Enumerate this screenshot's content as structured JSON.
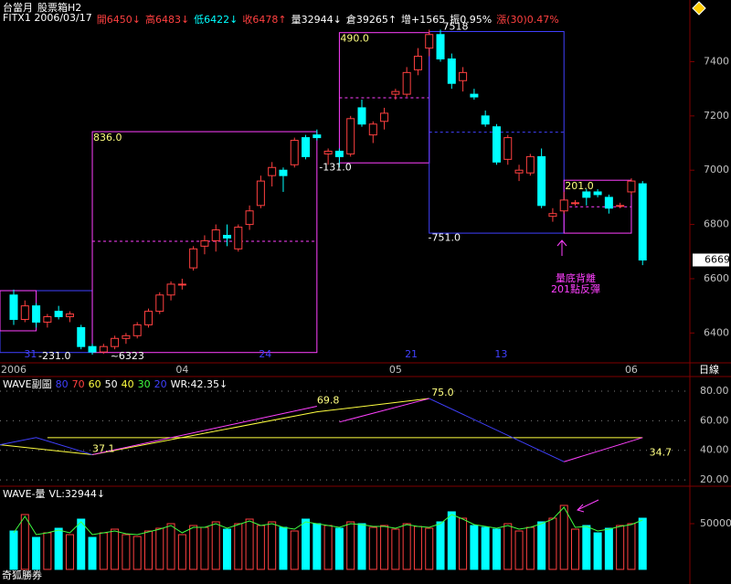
{
  "chart_data": [
    {
      "type": "candlestick",
      "title": "台當月",
      "subtitle": "股票箱H2",
      "info": [
        {
          "text": "FITX1 2006/03/17",
          "color": "#ffffff"
        },
        {
          "text": "開6450↓",
          "color": "#ff4040"
        },
        {
          "text": "高6483↓",
          "color": "#ff4040"
        },
        {
          "text": "低6422↓",
          "color": "#00ffff"
        },
        {
          "text": "收6478↑",
          "color": "#ff4040"
        },
        {
          "text": "量32944↓",
          "color": "#ffffff"
        },
        {
          "text": "倉39265↑",
          "color": "#ffffff"
        },
        {
          "text": "增+1565",
          "color": "#ffffff"
        },
        {
          "text": "振0.95%",
          "color": "#ffffff"
        },
        {
          "text": "漲(30)0.47%",
          "color": "#ff4040"
        }
      ],
      "up_color": "#ff4040",
      "down_color": "#00ffff",
      "candles": [
        [
          6540,
          6560,
          6430,
          6450
        ],
        [
          6450,
          6520,
          6440,
          6500
        ],
        [
          6500,
          6510,
          6420,
          6440
        ],
        [
          6440,
          6470,
          6420,
          6460
        ],
        [
          6480,
          6500,
          6450,
          6460
        ],
        [
          6460,
          6480,
          6440,
          6470
        ],
        [
          6420,
          6430,
          6340,
          6350
        ],
        [
          6350,
          6360,
          6320,
          6330
        ],
        [
          6330,
          6360,
          6323,
          6350
        ],
        [
          6350,
          6390,
          6340,
          6380
        ],
        [
          6380,
          6400,
          6360,
          6390
        ],
        [
          6390,
          6440,
          6380,
          6430
        ],
        [
          6430,
          6490,
          6420,
          6480
        ],
        [
          6480,
          6550,
          6470,
          6540
        ],
        [
          6540,
          6590,
          6520,
          6580
        ],
        [
          6580,
          6600,
          6560,
          6580
        ],
        [
          6640,
          6720,
          6630,
          6710
        ],
        [
          6720,
          6760,
          6690,
          6740
        ],
        [
          6740,
          6800,
          6700,
          6780
        ],
        [
          6760,
          6800,
          6720,
          6750
        ],
        [
          6710,
          6800,
          6700,
          6790
        ],
        [
          6800,
          6870,
          6780,
          6850
        ],
        [
          6870,
          6980,
          6860,
          6960
        ],
        [
          6980,
          7030,
          6940,
          7010
        ],
        [
          7000,
          7010,
          6920,
          6980
        ],
        [
          7020,
          7120,
          7010,
          7110
        ],
        [
          7120,
          7130,
          7040,
          7050
        ],
        [
          7130,
          7150,
          7110,
          7120
        ],
        [
          7060,
          7080,
          7020,
          7070
        ],
        [
          7070,
          7080,
          7010,
          7050
        ],
        [
          7060,
          7200,
          7050,
          7190
        ],
        [
          7230,
          7260,
          7160,
          7170
        ],
        [
          7130,
          7180,
          7100,
          7170
        ],
        [
          7180,
          7230,
          7150,
          7210
        ],
        [
          7280,
          7300,
          7260,
          7290
        ],
        [
          7280,
          7380,
          7270,
          7360
        ],
        [
          7370,
          7450,
          7350,
          7420
        ],
        [
          7450,
          7518,
          7420,
          7500
        ],
        [
          7500,
          7518,
          7400,
          7410
        ],
        [
          7410,
          7430,
          7300,
          7320
        ],
        [
          7330,
          7380,
          7290,
          7360
        ],
        [
          7280,
          7300,
          7260,
          7270
        ],
        [
          7200,
          7220,
          7160,
          7170
        ],
        [
          7160,
          7170,
          7020,
          7030
        ],
        [
          7040,
          7130,
          7020,
          7120
        ],
        [
          6990,
          7020,
          6960,
          7000
        ],
        [
          6990,
          7060,
          6980,
          7050
        ],
        [
          7050,
          7080,
          6860,
          6870
        ],
        [
          6830,
          6860,
          6810,
          6840
        ],
        [
          6850,
          6920,
          6840,
          6890
        ],
        [
          6880,
          6890,
          6870,
          6880
        ],
        [
          6920,
          6930,
          6870,
          6900
        ],
        [
          6920,
          6930,
          6900,
          6910
        ],
        [
          6900,
          6910,
          6840,
          6860
        ],
        [
          6870,
          6880,
          6860,
          6870
        ],
        [
          6920,
          6970,
          6910,
          6960
        ],
        [
          6950,
          6960,
          6650,
          6669
        ]
      ],
      "ylim": [
        6290,
        7570
      ],
      "yticks": [
        6400,
        6600,
        6800,
        7000,
        7200,
        7400
      ],
      "xticks": [
        {
          "value": 0,
          "label": "2006"
        },
        {
          "value": 15,
          "label": "04"
        },
        {
          "value": 34,
          "label": "05"
        },
        {
          "value": 55,
          "label": "06"
        }
      ],
      "period_label": "日線",
      "day_ticks": [
        {
          "value": 1.5,
          "label": "31"
        },
        {
          "value": 22.4,
          "label": "24"
        },
        {
          "value": 35.4,
          "label": "21"
        },
        {
          "value": 43.4,
          "label": "13"
        }
      ],
      "last_price": 6669,
      "boxes": [
        {
          "x0": -1.22,
          "x1": 7,
          "top": 6556,
          "bottom": 6328,
          "color": "#4040ff"
        },
        {
          "x0": -1.22,
          "x1": 2,
          "top": 6556,
          "bottom": 6408,
          "color": "#ff40ff"
        },
        {
          "x0": 7,
          "x1": 27,
          "top": 7142,
          "bottom": 6328,
          "color": "#ff40ff",
          "label": "836.0",
          "mid": 6738
        },
        {
          "x0": 29,
          "x1": 37,
          "top": 7507,
          "bottom": 7027,
          "color": "#ff40ff",
          "label": "490.0",
          "mid": 7267
        },
        {
          "x0": 37,
          "x1": 49,
          "top": 7511,
          "bottom": 6768,
          "color": "#4040ff",
          "mid": 7140
        },
        {
          "x0": 49,
          "x1": 55,
          "top": 6963,
          "bottom": 6768,
          "color": "#ff40ff",
          "label": "201.0",
          "mid": 6865
        }
      ],
      "annotations": [
        {
          "text": "-231.0",
          "x": 2.2,
          "y": 6314
        },
        {
          "text": "~6323",
          "x": 8.6,
          "y": 6314
        },
        {
          "text": "-131.0",
          "x": 27.2,
          "y": 7010
        },
        {
          "text": "-751.0",
          "x": 36.9,
          "y": 6750
        },
        {
          "text": "7518",
          "x": 38.2,
          "y": 7528
        }
      ],
      "note": [
        "量底背離",
        "201點反彈"
      ]
    },
    {
      "type": "line",
      "title": "WAVE副圖",
      "levels": [
        {
          "text": "80",
          "color": "#4040ff"
        },
        {
          "text": "70",
          "color": "#ff4040"
        },
        {
          "text": "60",
          "color": "#ffff40"
        },
        {
          "text": "50",
          "color": "#ffffff"
        },
        {
          "text": "40",
          "color": "#ffff40"
        },
        {
          "text": "30",
          "color": "#40ff40"
        },
        {
          "text": "20",
          "color": "#4040ff"
        }
      ],
      "readout": "WR:42.35↓",
      "ylim": [
        17,
        88
      ],
      "yticks": [
        {
          "value": 80,
          "label": "80.00"
        },
        {
          "value": 60,
          "label": "60.00"
        },
        {
          "value": 40,
          "label": "40.00"
        },
        {
          "value": 20,
          "label": "20.00"
        }
      ],
      "grid": true,
      "series": [
        {
          "color": "#ffff40",
          "x": [
            -1.22,
            7,
            27,
            37
          ],
          "values": [
            43.8,
            37.1,
            66,
            75
          ]
        },
        {
          "color": "#ffff40",
          "x": [
            3,
            56
          ],
          "values": [
            48.6,
            48.6
          ]
        },
        {
          "color": "#4040ff",
          "x": [
            -1.22,
            2,
            7
          ],
          "values": [
            43.8,
            48.6,
            37.1
          ]
        },
        {
          "color": "#ff40ff",
          "x": [
            7,
            27
          ],
          "values": [
            37.1,
            69.8
          ]
        },
        {
          "color": "#ff40ff",
          "x": [
            29,
            37
          ],
          "values": [
            59.1,
            75
          ]
        },
        {
          "color": "#4040ff",
          "x": [
            37,
            49
          ],
          "values": [
            75,
            32.3
          ]
        },
        {
          "color": "#ff40ff",
          "x": [
            49,
            56
          ],
          "values": [
            32.3,
            48.6
          ]
        }
      ],
      "point_labels": [
        {
          "x": 27,
          "value": 69.8
        },
        {
          "x": 37.2,
          "value": 75,
          "label": "75.0"
        },
        {
          "x": 7,
          "value": 37.1
        },
        {
          "x": 56.6,
          "value": 34.7
        }
      ]
    },
    {
      "type": "bar",
      "title": "WAVE-量",
      "readout": "VL:32944↓",
      "values": [
        42000,
        60000,
        35000,
        40000,
        45000,
        38000,
        55000,
        35000,
        40000,
        44000,
        38000,
        36000,
        42000,
        45000,
        50000,
        38000,
        48000,
        46000,
        52000,
        44000,
        50000,
        55000,
        48000,
        52000,
        46000,
        42000,
        55000,
        50000,
        48000,
        45000,
        52000,
        50000,
        46000,
        48000,
        44000,
        50000,
        47000,
        45000,
        52000,
        63000,
        56000,
        48000,
        46000,
        44000,
        50000,
        42000,
        46000,
        52000,
        56000,
        70000,
        44000,
        48000,
        40000,
        45000,
        48000,
        50000,
        56000
      ],
      "line_color": "#40ff40",
      "line_values": [
        40000,
        58000,
        38000,
        40000,
        43000,
        40000,
        52000,
        38000,
        40000,
        42000,
        39000,
        38000,
        41000,
        44000,
        48000,
        40000,
        46000,
        46000,
        50000,
        45000,
        49000,
        53000,
        48000,
        50000,
        46000,
        44000,
        52000,
        50000,
        48000,
        46000,
        50000,
        49000,
        47000,
        47000,
        45000,
        49000,
        47000,
        46000,
        50000,
        60000,
        55000,
        49000,
        47000,
        45000,
        48000,
        44000,
        46000,
        50000,
        55000,
        68000,
        46000,
        47000,
        42000,
        44000,
        47000,
        49000,
        54000
      ],
      "ylim": [
        0,
        86000
      ],
      "yticks": [
        {
          "value": 50000,
          "label": "50000"
        }
      ],
      "footer": "奇狐勝券"
    }
  ]
}
